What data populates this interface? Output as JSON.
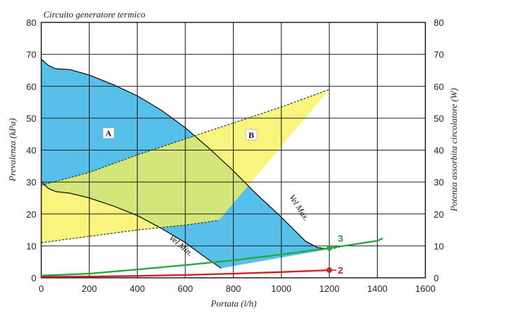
{
  "chart_data": {
    "type": "area",
    "title": "Circuito generatore termico",
    "xlabel": "Portata (l/h)",
    "ylabel": "Prevalenza (kPa)",
    "ylabel_right": "Potenza assorbita circolatore (W)",
    "xlim": [
      0,
      1600
    ],
    "ylim": [
      0,
      80
    ],
    "x_ticks": [
      "0",
      "200",
      "400",
      "600",
      "800",
      "1000",
      "1200",
      "1400",
      "1600"
    ],
    "y_ticks": [
      "0",
      "10",
      "20",
      "30",
      "40",
      "50",
      "60",
      "70",
      "80"
    ],
    "y_ticks_right": [
      "0",
      "10",
      "20",
      "30",
      "40",
      "50",
      "60",
      "70",
      "80"
    ],
    "grid": true,
    "regions": [
      {
        "name": "A",
        "color": "#4dbde9",
        "upper": {
          "x": [
            0,
            30,
            60,
            120,
            200,
            300,
            400,
            500,
            600,
            700,
            800,
            900,
            1000,
            1100,
            1150,
            1200
          ],
          "y": [
            68.5,
            66.5,
            65.5,
            65.2,
            63.5,
            60.5,
            57,
            52.5,
            47,
            40.5,
            33.5,
            26,
            19,
            11.5,
            9.5,
            9
          ]
        },
        "lower": {
          "x": [
            0,
            30,
            60,
            120,
            200,
            300,
            400,
            500,
            600,
            700,
            750
          ],
          "y": [
            30,
            28,
            27,
            26.5,
            25,
            22.5,
            19.5,
            15.5,
            11,
            5.5,
            3
          ]
        }
      },
      {
        "name": "B",
        "color": "#f7f159",
        "upper": {
          "x": [
            0,
            200,
            400,
            600,
            800,
            1000,
            1200
          ],
          "y": [
            29,
            33,
            38.5,
            43.5,
            48.5,
            53.5,
            59
          ]
        },
        "lower": {
          "x": [
            0,
            200,
            400,
            600,
            740,
            1200
          ],
          "y": [
            11,
            13,
            15,
            16.5,
            18,
            59
          ]
        }
      }
    ],
    "curve_labels": [
      {
        "text": "Vel Max.",
        "x": 1065,
        "y": 21.5,
        "angle": 57
      },
      {
        "text": "Vel Min.",
        "x": 575,
        "y": 9.5,
        "angle": 40
      }
    ],
    "box_labels": [
      {
        "text": "A",
        "x": 280,
        "y": 45
      },
      {
        "text": "B",
        "x": 875,
        "y": 44.5
      }
    ],
    "series": [
      {
        "name": "3",
        "color": "#2aa640",
        "x": [
          0,
          200,
          400,
          600,
          800,
          1000,
          1200,
          1400,
          1420
        ],
        "y": [
          0.7,
          1.3,
          2.6,
          4.0,
          5.5,
          7.3,
          9.3,
          11.6,
          12.3
        ]
      },
      {
        "name": "2",
        "color": "#d42020",
        "x": [
          0,
          200,
          400,
          600,
          800,
          1000,
          1200
        ],
        "y": [
          0.3,
          0.4,
          0.6,
          0.9,
          1.3,
          1.8,
          2.4
        ]
      }
    ],
    "points": [
      {
        "label": "3",
        "x": 1200,
        "y": 9.3,
        "color": "#2aa640"
      },
      {
        "label": "2",
        "x": 1200,
        "y": 2.4,
        "color": "#d42020"
      }
    ]
  }
}
